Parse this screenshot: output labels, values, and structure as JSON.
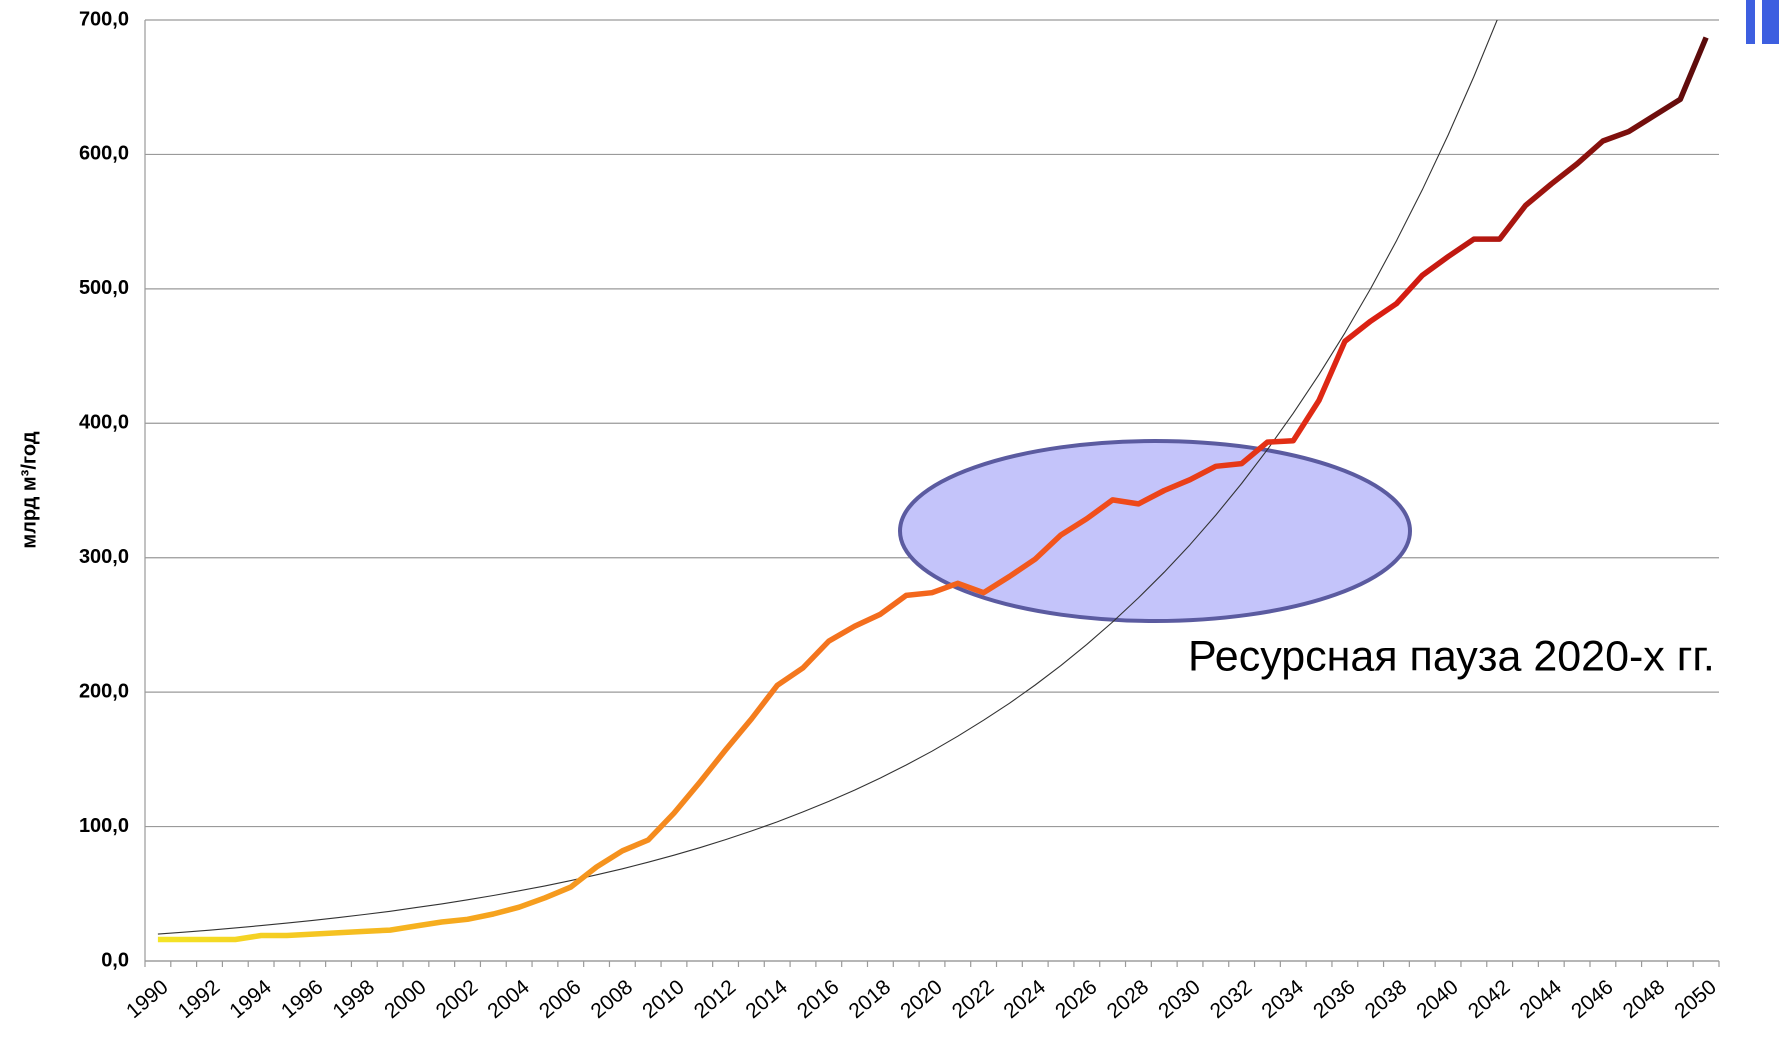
{
  "chart_data": {
    "type": "line",
    "ylabel": "млрд м³/год",
    "categories": [
      "1990",
      null,
      "1992",
      null,
      "1994",
      null,
      "1996",
      null,
      "1998",
      null,
      "2000",
      null,
      "2002",
      null,
      "2004",
      null,
      "2006",
      null,
      "2008",
      null,
      "2010",
      null,
      "2012",
      null,
      "2014",
      null,
      "2016",
      null,
      "2018",
      null,
      "2020",
      null,
      "2022",
      null,
      "2024",
      null,
      "2026",
      null,
      "2028",
      null,
      "2030",
      null,
      "2032",
      null,
      "2034",
      null,
      "2036",
      null,
      "2038",
      null,
      "2040",
      null,
      "2042",
      null,
      "2044",
      null,
      "2046",
      null,
      "2048",
      null,
      "2050"
    ],
    "series": [
      {
        "color": [
          "#f4e526",
          "#f6a71e",
          "#f47a1e",
          "#f2501b",
          "#d81c12",
          "#5a0b0b"
        ],
        "values": [
          16,
          16,
          16,
          16,
          19,
          19,
          20,
          21,
          22,
          23,
          26,
          29,
          31,
          35,
          40,
          47,
          55,
          70,
          82,
          90,
          110,
          133,
          157,
          180,
          205,
          218,
          238,
          249,
          258,
          272,
          274,
          281,
          274,
          286,
          299,
          317,
          329,
          343,
          340,
          350,
          358,
          368,
          370,
          386,
          387,
          417,
          461,
          476,
          489,
          510,
          524,
          537,
          537,
          562,
          578,
          593,
          610,
          617,
          629,
          641,
          687
        ]
      },
      {
        "color": "#333333",
        "values": [
          20,
          21.4,
          22.9,
          24.6,
          26.3,
          28.2,
          30.2,
          32.3,
          34.6,
          37.0,
          39.7,
          42.5,
          45.5,
          48.7,
          52.2,
          55.9,
          59.8,
          64.1,
          68.6,
          73.5,
          78.7,
          84.3,
          90.3,
          96.7,
          103.5,
          110.9,
          118.7,
          127.1,
          136.1,
          145.8,
          156.1,
          167.2,
          179.1,
          191.7,
          205.3,
          219.9,
          235.5,
          252.2,
          270.1,
          289.2,
          309.7,
          331.7,
          355.2,
          380.4,
          407.4,
          436.2,
          467.2,
          500.3,
          535.8,
          573.7,
          614.4,
          658.0,
          704.6,
          null,
          null,
          null,
          null,
          null,
          null,
          null,
          null
        ]
      }
    ],
    "ylim": [
      0,
      700
    ],
    "yticks": [
      {
        "value": 0,
        "label": "0,0"
      },
      {
        "value": 100,
        "label": "100,0"
      },
      {
        "value": 200,
        "label": "200,0"
      },
      {
        "value": 300,
        "label": "300,0"
      },
      {
        "value": 400,
        "label": "400,0"
      },
      {
        "value": 500,
        "label": "500,0"
      },
      {
        "value": 600,
        "label": "600,0"
      },
      {
        "value": 700,
        "label": "700,0"
      }
    ],
    "grid": true,
    "annotation": {
      "text": "Ресурсная пауза 2020-х гг.",
      "color": "#5b5ba0",
      "fill": "#c4c4fa"
    }
  }
}
